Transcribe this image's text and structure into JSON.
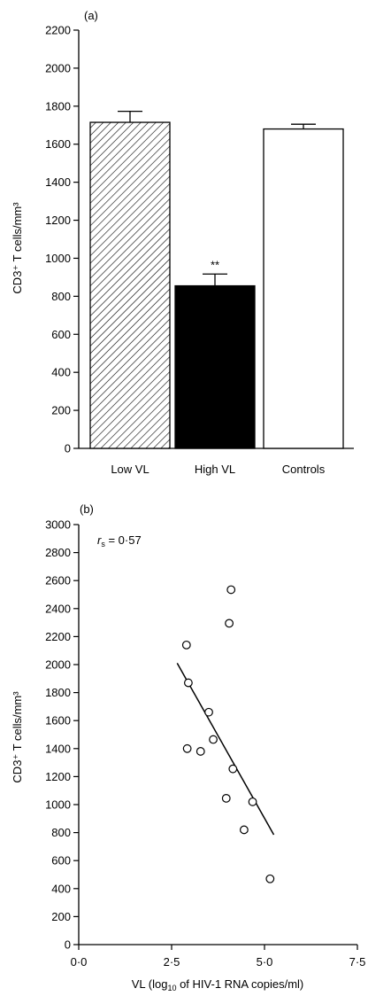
{
  "chart_data": [
    {
      "type": "bar",
      "panel_label": "(a)",
      "ylabel": "CD3⁺ T cells/mm³",
      "ylim": [
        0,
        2200
      ],
      "yticks": [
        "0",
        "200",
        "400",
        "600",
        "800",
        "1000",
        "1200",
        "1400",
        "1600",
        "1800",
        "2000",
        "2200"
      ],
      "ytick_values": [
        0,
        200,
        400,
        600,
        800,
        1000,
        1200,
        1400,
        1600,
        1800,
        2000,
        2200
      ],
      "categories": [
        "Low VL",
        "High VL",
        "Controls"
      ],
      "values": [
        1715,
        855,
        1680
      ],
      "errors": [
        58,
        62,
        25
      ],
      "fills": [
        "hatched",
        "black",
        "white"
      ],
      "annotations": [
        "",
        "**",
        ""
      ]
    },
    {
      "type": "scatter",
      "panel_label": "(b)",
      "annotation_r": "r",
      "annotation_sub": "s",
      "annotation_value": " = 0·57",
      "xlabel": "VL (log",
      "xlabel_sub": "10",
      "xlabel_rest": " of HIV-1 RNA copies/ml)",
      "ylabel": "CD3⁺ T cells/mm³",
      "xlim": [
        0,
        7.5
      ],
      "ylim": [
        0,
        3000
      ],
      "xticks": [
        "0·0",
        "2·5",
        "5·0",
        "7·5"
      ],
      "xtick_values": [
        0,
        2.5,
        5,
        7.5
      ],
      "yticks": [
        "0",
        "200",
        "400",
        "600",
        "800",
        "1000",
        "1200",
        "1400",
        "1600",
        "1800",
        "2000",
        "2200",
        "2400",
        "2600",
        "2800",
        "3000"
      ],
      "ytick_values": [
        0,
        200,
        400,
        600,
        800,
        1000,
        1200,
        1400,
        1600,
        1800,
        2000,
        2200,
        2400,
        2600,
        2800,
        3000
      ],
      "x": [
        2.9,
        2.95,
        2.92,
        3.28,
        3.5,
        3.62,
        3.97,
        4.05,
        4.1,
        4.15,
        4.45,
        4.68,
        5.15
      ],
      "y": [
        2140,
        1870,
        1400,
        1380,
        1660,
        1465,
        1045,
        2295,
        2535,
        1255,
        820,
        1020,
        470
      ],
      "fit_line": {
        "x": [
          2.65,
          5.25
        ],
        "y": [
          2010,
          785
        ]
      }
    }
  ]
}
